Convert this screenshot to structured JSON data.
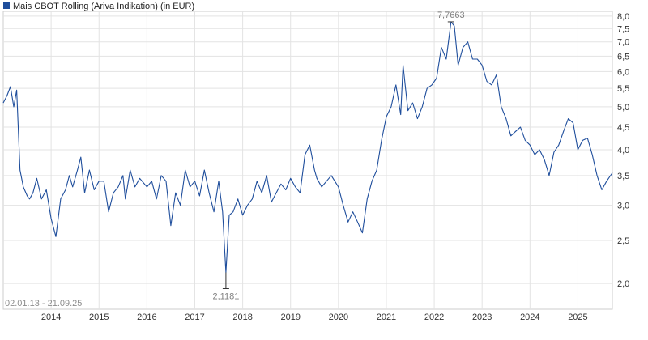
{
  "colors": {
    "series": "#1f4e9c",
    "grid": "#e3e3e3",
    "axis_text": "#333333",
    "annotation": "#7f7f7f",
    "frame": "#cccccc"
  },
  "legend": {
    "icon": "legend-square-icon",
    "label": "Mais CBOT Rolling (Ariva Indikation) (in EUR)"
  },
  "date_range_label": "02.01.13 - 21.09.25",
  "chart_data": {
    "type": "line",
    "title": "",
    "xlabel": "",
    "ylabel": "",
    "yscale": "log",
    "ylim": [
      1.75,
      8.2
    ],
    "xlim": [
      2013.0,
      2025.72
    ],
    "grid": true,
    "legend_position": "top-left",
    "y_ticks": [
      2.0,
      2.5,
      3.0,
      3.5,
      4.0,
      4.5,
      5.0,
      5.5,
      6.0,
      6.5,
      7.0,
      7.5,
      8.0
    ],
    "y_tick_labels": [
      "2,0",
      "2,5",
      "3,0",
      "3,5",
      "4,0",
      "4,5",
      "5,0",
      "5,5",
      "6,0",
      "6,5",
      "7,0",
      "7,5",
      "8,0"
    ],
    "x_ticks": [
      2014,
      2015,
      2016,
      2017,
      2018,
      2019,
      2020,
      2021,
      2022,
      2023,
      2024,
      2025
    ],
    "x_tick_labels": [
      "2014",
      "2015",
      "2016",
      "2017",
      "2018",
      "2019",
      "2020",
      "2021",
      "2022",
      "2023",
      "2024",
      "2025"
    ],
    "annotations": [
      {
        "label": "7,7663",
        "x": 2022.35,
        "y": 7.7663
      },
      {
        "label": "2,1181",
        "x": 2017.65,
        "y": 2.1181
      }
    ],
    "series": [
      {
        "x": [
          2013.0,
          2013.08,
          2013.15,
          2013.22,
          2013.28,
          2013.35,
          2013.42,
          2013.5,
          2013.55,
          2013.62,
          2013.7,
          2013.8,
          2013.9,
          2014.0,
          2014.1,
          2014.2,
          2014.3,
          2014.38,
          2014.45,
          2014.55,
          2014.62,
          2014.7,
          2014.8,
          2014.9,
          2015.0,
          2015.1,
          2015.2,
          2015.3,
          2015.4,
          2015.5,
          2015.55,
          2015.65,
          2015.75,
          2015.85,
          2016.0,
          2016.1,
          2016.2,
          2016.3,
          2016.4,
          2016.5,
          2016.6,
          2016.7,
          2016.8,
          2016.9,
          2017.0,
          2017.1,
          2017.2,
          2017.3,
          2017.4,
          2017.5,
          2017.58,
          2017.65,
          2017.72,
          2017.8,
          2017.9,
          2018.0,
          2018.1,
          2018.2,
          2018.3,
          2018.4,
          2018.5,
          2018.6,
          2018.7,
          2018.8,
          2018.9,
          2019.0,
          2019.1,
          2019.2,
          2019.3,
          2019.4,
          2019.5,
          2019.55,
          2019.65,
          2019.75,
          2019.85,
          2020.0,
          2020.1,
          2020.2,
          2020.3,
          2020.4,
          2020.5,
          2020.6,
          2020.7,
          2020.8,
          2020.9,
          2021.0,
          2021.1,
          2021.2,
          2021.3,
          2021.35,
          2021.45,
          2021.55,
          2021.65,
          2021.75,
          2021.85,
          2021.95,
          2022.05,
          2022.15,
          2022.25,
          2022.35,
          2022.42,
          2022.5,
          2022.6,
          2022.7,
          2022.8,
          2022.9,
          2023.0,
          2023.1,
          2023.2,
          2023.3,
          2023.4,
          2023.5,
          2023.6,
          2023.7,
          2023.8,
          2023.9,
          2024.0,
          2024.1,
          2024.2,
          2024.3,
          2024.4,
          2024.5,
          2024.6,
          2024.7,
          2024.8,
          2024.9,
          2025.0,
          2025.1,
          2025.2,
          2025.3,
          2025.4,
          2025.5,
          2025.6,
          2025.72
        ],
        "values": [
          5.1,
          5.3,
          5.55,
          5.0,
          5.45,
          3.6,
          3.3,
          3.15,
          3.1,
          3.2,
          3.45,
          3.1,
          3.25,
          2.8,
          2.55,
          3.1,
          3.25,
          3.5,
          3.3,
          3.6,
          3.85,
          3.2,
          3.6,
          3.25,
          3.4,
          3.4,
          2.9,
          3.2,
          3.3,
          3.5,
          3.1,
          3.6,
          3.3,
          3.45,
          3.3,
          3.4,
          3.1,
          3.5,
          3.4,
          2.7,
          3.2,
          3.0,
          3.6,
          3.3,
          3.4,
          3.15,
          3.6,
          3.2,
          2.9,
          3.4,
          2.9,
          2.1181,
          2.85,
          2.9,
          3.1,
          2.85,
          3.0,
          3.1,
          3.4,
          3.2,
          3.5,
          3.05,
          3.2,
          3.35,
          3.25,
          3.45,
          3.3,
          3.2,
          3.9,
          4.1,
          3.6,
          3.45,
          3.3,
          3.4,
          3.5,
          3.3,
          3.0,
          2.75,
          2.9,
          2.75,
          2.6,
          3.1,
          3.4,
          3.6,
          4.2,
          4.75,
          5.0,
          5.6,
          4.8,
          6.2,
          4.9,
          5.1,
          4.7,
          5.0,
          5.5,
          5.6,
          5.8,
          6.8,
          6.4,
          7.7663,
          7.6,
          6.2,
          6.8,
          7.0,
          6.4,
          6.4,
          6.2,
          5.7,
          5.6,
          5.9,
          5.0,
          4.7,
          4.3,
          4.4,
          4.5,
          4.2,
          4.1,
          3.9,
          4.0,
          3.8,
          3.5,
          3.95,
          4.1,
          4.4,
          4.7,
          4.6,
          4.0,
          4.2,
          4.25,
          3.9,
          3.5,
          3.25,
          3.4,
          3.55
        ]
      }
    ]
  }
}
